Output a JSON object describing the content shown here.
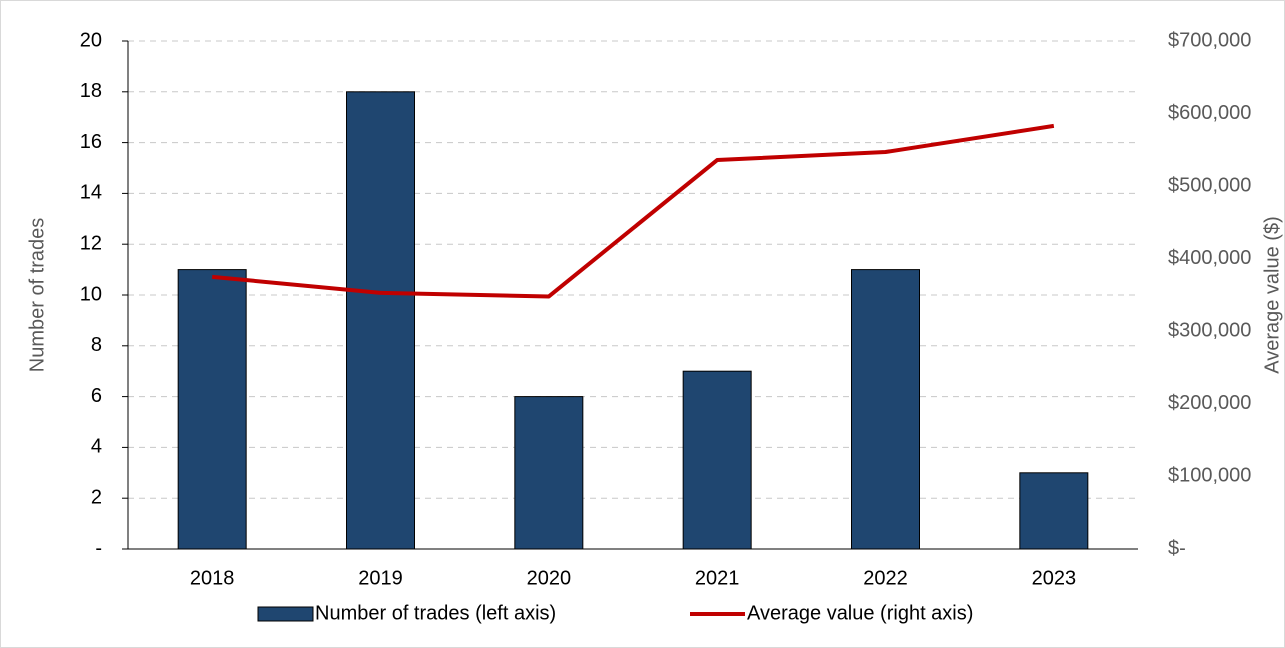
{
  "chart_data": {
    "type": "bar_line",
    "categories": [
      "2018",
      "2019",
      "2020",
      "2021",
      "2022",
      "2023"
    ],
    "series": [
      {
        "name": "Number of trades (left axis)",
        "type": "bar",
        "color": "#1f4670",
        "values": [
          11,
          18,
          6,
          7,
          11,
          3
        ]
      },
      {
        "name": "Average value (right axis)",
        "type": "line",
        "axis": "y2",
        "color": "#c00000",
        "values": [
          375000,
          353000,
          348000,
          536000,
          547000,
          583000
        ]
      }
    ],
    "y_label": "Number of trades",
    "y2_label": "Average value ($)",
    "ylim": [
      0,
      20
    ],
    "yticks": [
      {
        "value": 0,
        "label": "-"
      },
      2,
      4,
      6,
      8,
      10,
      12,
      14,
      16,
      18,
      20
    ],
    "y2lim": [
      0,
      700000
    ],
    "y2ticks": [
      {
        "value": 0,
        "label": "$-"
      },
      {
        "value": 100000,
        "label": "$100,000"
      },
      {
        "value": 200000,
        "label": "$200,000"
      },
      {
        "value": 300000,
        "label": "$300,000"
      },
      {
        "value": 400000,
        "label": "$400,000"
      },
      {
        "value": 500000,
        "label": "$500,000"
      },
      {
        "value": 600000,
        "label": "$600,000"
      },
      {
        "value": 700000,
        "label": "$700,000"
      }
    ],
    "grid": true,
    "legend": "bottom"
  }
}
